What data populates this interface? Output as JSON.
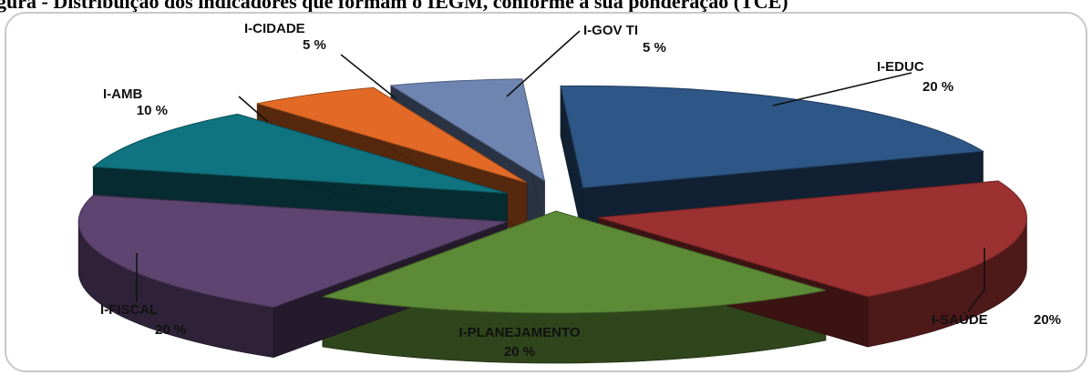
{
  "caption_fragment": "gura - Distribuição dos indicadores que formam o IEGM, conforme a sua ponderação (TCE)",
  "chart_data": {
    "type": "pie",
    "title": "",
    "categories": [
      "I-EDUC",
      "I-SAÚDE",
      "I-PLANEJAMENTO",
      "I-FISCAL",
      "I-AMB",
      "I-CIDADE",
      "I-GOV TI"
    ],
    "values": [
      20,
      20,
      20,
      20,
      10,
      5,
      5
    ],
    "value_labels": [
      "20 %",
      "20%",
      "20 %",
      "20 %",
      "10 %",
      "5 %",
      "5 %"
    ],
    "colors": [
      "#2e5686",
      "#9b3131",
      "#5d8a36",
      "#5e4470",
      "#0f7480",
      "#e26a26",
      "#6f85b1"
    ],
    "exploded": true,
    "style": "3d",
    "unit": "%"
  }
}
